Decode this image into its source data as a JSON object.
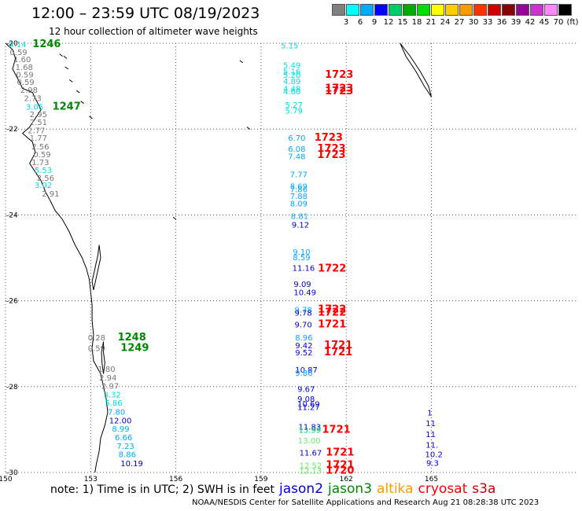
{
  "header": {
    "title": "12:00 – 23:59 UTC 08/19/2023",
    "subtitle": "12 hour collection of altimeter wave heights"
  },
  "scale": {
    "colors": [
      "#808080",
      "#00ffff",
      "#00aaff",
      "#0000ff",
      "#00cc66",
      "#00aa00",
      "#00dd00",
      "#ffff00",
      "#ffcc00",
      "#ff9900",
      "#ff3300",
      "#cc0000",
      "#880000",
      "#990099",
      "#cc33cc",
      "#ff88ff",
      "#000000"
    ],
    "labels": [
      "3",
      "6",
      "9",
      "12",
      "15",
      "18",
      "21",
      "24",
      "27",
      "30",
      "33",
      "36",
      "39",
      "42",
      "45",
      "70",
      "(ft)"
    ]
  },
  "axes": {
    "lat_labels": [
      "-20",
      "-22",
      "-24",
      "-26",
      "-28",
      "-30"
    ],
    "lon_labels": [
      "150",
      "153",
      "156",
      "159",
      "162",
      "165"
    ]
  },
  "markers": [
    {
      "t": "2.14",
      "c": "#00dddd",
      "lat": -20.02,
      "lon": 150.12
    },
    {
      "t": "1246",
      "c": "#008800",
      "lat": -20.02,
      "lon": 150.95,
      "big": true
    },
    {
      "t": "0.59",
      "c": "#777777",
      "lat": -20.2,
      "lon": 150.15
    },
    {
      "t": "1.60",
      "c": "#777777",
      "lat": -20.37,
      "lon": 150.28
    },
    {
      "t": "1.68",
      "c": "#777777",
      "lat": -20.55,
      "lon": 150.35
    },
    {
      "t": "0.59",
      "c": "#777777",
      "lat": -20.72,
      "lon": 150.37
    },
    {
      "t": "0.59",
      "c": "#777777",
      "lat": -20.9,
      "lon": 150.4
    },
    {
      "t": "2.98",
      "c": "#777777",
      "lat": -21.08,
      "lon": 150.52
    },
    {
      "t": "2.73",
      "c": "#777777",
      "lat": -21.27,
      "lon": 150.65
    },
    {
      "t": "3.05",
      "c": "#00dddd",
      "lat": -21.47,
      "lon": 150.72
    },
    {
      "t": "1247",
      "c": "#008800",
      "lat": -21.47,
      "lon": 151.65,
      "big": true
    },
    {
      "t": "2.95",
      "c": "#777777",
      "lat": -21.65,
      "lon": 150.85
    },
    {
      "t": "2.51",
      "c": "#777777",
      "lat": -21.83,
      "lon": 150.85
    },
    {
      "t": "2.77",
      "c": "#777777",
      "lat": -22.02,
      "lon": 150.78
    },
    {
      "t": "1.77",
      "c": "#777777",
      "lat": -22.2,
      "lon": 150.85
    },
    {
      "t": "2.56",
      "c": "#777777",
      "lat": -22.4,
      "lon": 150.92
    },
    {
      "t": "0.59",
      "c": "#777777",
      "lat": -22.58,
      "lon": 150.98
    },
    {
      "t": "1.73",
      "c": "#777777",
      "lat": -22.77,
      "lon": 150.92
    },
    {
      "t": "5.53",
      "c": "#00dddd",
      "lat": -22.95,
      "lon": 151.02
    },
    {
      "t": "2.56",
      "c": "#777777",
      "lat": -23.13,
      "lon": 151.1
    },
    {
      "t": "3.02",
      "c": "#00dddd",
      "lat": -23.3,
      "lon": 151.02
    },
    {
      "t": "2.91",
      "c": "#777777",
      "lat": -23.5,
      "lon": 151.28
    },
    {
      "t": "5.15",
      "c": "#00dddd",
      "lat": -20.05,
      "lon": 159.7
    },
    {
      "t": "5.49",
      "c": "#00dddd",
      "lat": -20.5,
      "lon": 159.78
    },
    {
      "t": "5.16",
      "c": "#00dddd",
      "lat": -20.65,
      "lon": 159.78
    },
    {
      "t": "5.20",
      "c": "#00dddd",
      "lat": -20.73,
      "lon": 159.78
    },
    {
      "t": "1723",
      "c": "#ff0000",
      "lat": -20.73,
      "lon": 161.25,
      "big": true
    },
    {
      "t": "4.89",
      "c": "#00dddd",
      "lat": -20.88,
      "lon": 159.78
    },
    {
      "t": "4.48",
      "c": "#00dddd",
      "lat": -21.05,
      "lon": 159.78
    },
    {
      "t": "1723",
      "c": "#ff0000",
      "lat": -21.05,
      "lon": 161.25,
      "big": true
    },
    {
      "t": "4.60",
      "c": "#00dddd",
      "lat": -21.12,
      "lon": 159.78
    },
    {
      "t": "1723",
      "c": "#ff0000",
      "lat": -21.12,
      "lon": 161.25,
      "big": true
    },
    {
      "t": "5.27",
      "c": "#00dddd",
      "lat": -21.43,
      "lon": 159.85
    },
    {
      "t": "5.79",
      "c": "#00dddd",
      "lat": -21.57,
      "lon": 159.85
    },
    {
      "t": "6.70",
      "c": "#00aaff",
      "lat": -22.2,
      "lon": 159.95
    },
    {
      "t": "1723",
      "c": "#ff0000",
      "lat": -22.2,
      "lon": 160.88,
      "big": true
    },
    {
      "t": "6.08",
      "c": "#00aaff",
      "lat": -22.45,
      "lon": 159.95
    },
    {
      "t": "1723",
      "c": "#ff0000",
      "lat": -22.45,
      "lon": 160.98,
      "big": true
    },
    {
      "t": "7.48",
      "c": "#00aaff",
      "lat": -22.63,
      "lon": 159.95
    },
    {
      "t": "1723",
      "c": "#ff0000",
      "lat": -22.6,
      "lon": 160.98,
      "big": true
    },
    {
      "t": "7.77",
      "c": "#00aaff",
      "lat": -23.05,
      "lon": 160.02
    },
    {
      "t": "8.69",
      "c": "#00aaff",
      "lat": -23.32,
      "lon": 160.02
    },
    {
      "t": "7.86",
      "c": "#00aaff",
      "lat": -23.4,
      "lon": 160.02
    },
    {
      "t": "7.88",
      "c": "#00aaff",
      "lat": -23.55,
      "lon": 160.02
    },
    {
      "t": "8.09",
      "c": "#00aaff",
      "lat": -23.73,
      "lon": 160.02
    },
    {
      "t": "8.81",
      "c": "#00aaff",
      "lat": -24.02,
      "lon": 160.05
    },
    {
      "t": "9.12",
      "c": "#0000dd",
      "lat": -24.22,
      "lon": 160.08
    },
    {
      "t": "9.10",
      "c": "#00aaff",
      "lat": -24.85,
      "lon": 160.12
    },
    {
      "t": "8.59",
      "c": "#00aaff",
      "lat": -24.98,
      "lon": 160.12
    },
    {
      "t": "11.16",
      "c": "#0000dd",
      "lat": -25.23,
      "lon": 160.1
    },
    {
      "t": "1722",
      "c": "#ff0000",
      "lat": -25.25,
      "lon": 161.0,
      "big": true
    },
    {
      "t": "9.09",
      "c": "#0000dd",
      "lat": -25.6,
      "lon": 160.15
    },
    {
      "t": "10.49",
      "c": "#0000dd",
      "lat": -25.8,
      "lon": 160.15
    },
    {
      "t": "9.78",
      "c": "#00aaff",
      "lat": -26.2,
      "lon": 160.18
    },
    {
      "t": "1722",
      "c": "#ff0000",
      "lat": -26.2,
      "lon": 161.0,
      "big": true
    },
    {
      "t": "9.78",
      "c": "#0000dd",
      "lat": -26.27,
      "lon": 160.18
    },
    {
      "t": "1722",
      "c": "#ff0000",
      "lat": -26.27,
      "lon": 161.0,
      "big": true
    },
    {
      "t": "9.70",
      "c": "#0000dd",
      "lat": -26.55,
      "lon": 160.18
    },
    {
      "t": "1721",
      "c": "#ff0000",
      "lat": -26.55,
      "lon": 161.0,
      "big": true
    },
    {
      "t": "8.96",
      "c": "#00aaff",
      "lat": -26.85,
      "lon": 160.2
    },
    {
      "t": "9.42",
      "c": "#0000dd",
      "lat": -27.03,
      "lon": 160.2
    },
    {
      "t": "1721",
      "c": "#ff0000",
      "lat": -27.03,
      "lon": 161.22,
      "big": true
    },
    {
      "t": "9.52",
      "c": "#0000dd",
      "lat": -27.2,
      "lon": 160.2
    },
    {
      "t": "1721",
      "c": "#ff0000",
      "lat": -27.2,
      "lon": 161.22,
      "big": true
    },
    {
      "t": "10.87",
      "c": "#0000dd",
      "lat": -27.6,
      "lon": 160.2
    },
    {
      "t": "9.86",
      "c": "#00aaff",
      "lat": -27.67,
      "lon": 160.2
    },
    {
      "t": "9.67",
      "c": "#0000dd",
      "lat": -28.05,
      "lon": 160.28
    },
    {
      "t": "9.08",
      "c": "#0000dd",
      "lat": -28.28,
      "lon": 160.28
    },
    {
      "t": "10.69",
      "c": "#0000dd",
      "lat": -28.4,
      "lon": 160.28
    },
    {
      "t": "11.27",
      "c": "#0000dd",
      "lat": -28.47,
      "lon": 160.28
    },
    {
      "t": "11.83",
      "c": "#0000dd",
      "lat": -28.93,
      "lon": 160.32
    },
    {
      "t": "13.99",
      "c": "#00cc66",
      "lat": -29.0,
      "lon": 160.32
    },
    {
      "t": "1721",
      "c": "#ff0000",
      "lat": -29.0,
      "lon": 161.15,
      "big": true
    },
    {
      "t": "13.00",
      "c": "#66ee66",
      "lat": -29.25,
      "lon": 160.3
    },
    {
      "t": "11.67",
      "c": "#0000dd",
      "lat": -29.53,
      "lon": 160.35
    },
    {
      "t": "1721",
      "c": "#ff0000",
      "lat": -29.53,
      "lon": 161.28,
      "big": true
    },
    {
      "t": "12.52",
      "c": "#66ee66",
      "lat": -29.83,
      "lon": 160.35
    },
    {
      "t": "1721",
      "c": "#ff0000",
      "lat": -29.83,
      "lon": 161.28,
      "big": true
    },
    {
      "t": "12.13",
      "c": "#66ee66",
      "lat": -29.95,
      "lon": 160.35
    },
    {
      "t": "1720",
      "c": "#ff0000",
      "lat": -29.95,
      "lon": 161.28,
      "big": true
    },
    {
      "t": "1",
      "c": "#0000dd",
      "lat": -28.6,
      "lon": 164.85
    },
    {
      "t": "11",
      "c": "#0000dd",
      "lat": -28.85,
      "lon": 164.8
    },
    {
      "t": "11",
      "c": "#0000dd",
      "lat": -29.1,
      "lon": 164.8
    },
    {
      "t": "11.",
      "c": "#0000dd",
      "lat": -29.35,
      "lon": 164.8
    },
    {
      "t": "10.2",
      "c": "#0000dd",
      "lat": -29.57,
      "lon": 164.78
    },
    {
      "t": "9.3",
      "c": "#0000dd",
      "lat": -29.77,
      "lon": 164.82
    },
    {
      "t": "0.28",
      "c": "#777777",
      "lat": -26.85,
      "lon": 152.9
    },
    {
      "t": "1248",
      "c": "#008800",
      "lat": -26.85,
      "lon": 153.95,
      "big": true
    },
    {
      "t": "0.59",
      "c": "#777777",
      "lat": -27.1,
      "lon": 152.9
    },
    {
      "t": "1249",
      "c": "#008800",
      "lat": -27.1,
      "lon": 154.05,
      "big": true
    },
    {
      "t": "1.80",
      "c": "#777777",
      "lat": -27.58,
      "lon": 153.25
    },
    {
      "t": "2.94",
      "c": "#777777",
      "lat": -27.78,
      "lon": 153.3
    },
    {
      "t": "2.97",
      "c": "#777777",
      "lat": -27.98,
      "lon": 153.38
    },
    {
      "t": "3.32",
      "c": "#00dddd",
      "lat": -28.18,
      "lon": 153.45
    },
    {
      "t": "5.86",
      "c": "#00dddd",
      "lat": -28.37,
      "lon": 153.5
    },
    {
      "t": "7.80",
      "c": "#00aaff",
      "lat": -28.58,
      "lon": 153.6
    },
    {
      "t": "12.00",
      "c": "#0000dd",
      "lat": -28.78,
      "lon": 153.65
    },
    {
      "t": "8.99",
      "c": "#00aaff",
      "lat": -28.97,
      "lon": 153.75
    },
    {
      "t": "6.66",
      "c": "#00aaff",
      "lat": -29.18,
      "lon": 153.85
    },
    {
      "t": "7.23",
      "c": "#00aaff",
      "lat": -29.38,
      "lon": 153.92
    },
    {
      "t": "8.86",
      "c": "#00aaff",
      "lat": -29.57,
      "lon": 153.98
    },
    {
      "t": "10.19",
      "c": "#0000dd",
      "lat": -29.78,
      "lon": 154.05
    }
  ],
  "note": {
    "text": "note: 1) Time is in UTC; 2) SWH is in feet",
    "legend": [
      {
        "label": "jason2",
        "color": "#0000dd"
      },
      {
        "label": "jason3",
        "color": "#008800"
      },
      {
        "label": "altika",
        "color": "#ff9900"
      },
      {
        "label": "cryosat",
        "color": "#ff0000"
      },
      {
        "label": "s3a",
        "color": "#cc0000"
      }
    ]
  },
  "footer": "NOAA/NESDIS Center for Satellite Applications and Research    Aug 21 08:28:38 UTC 2023"
}
